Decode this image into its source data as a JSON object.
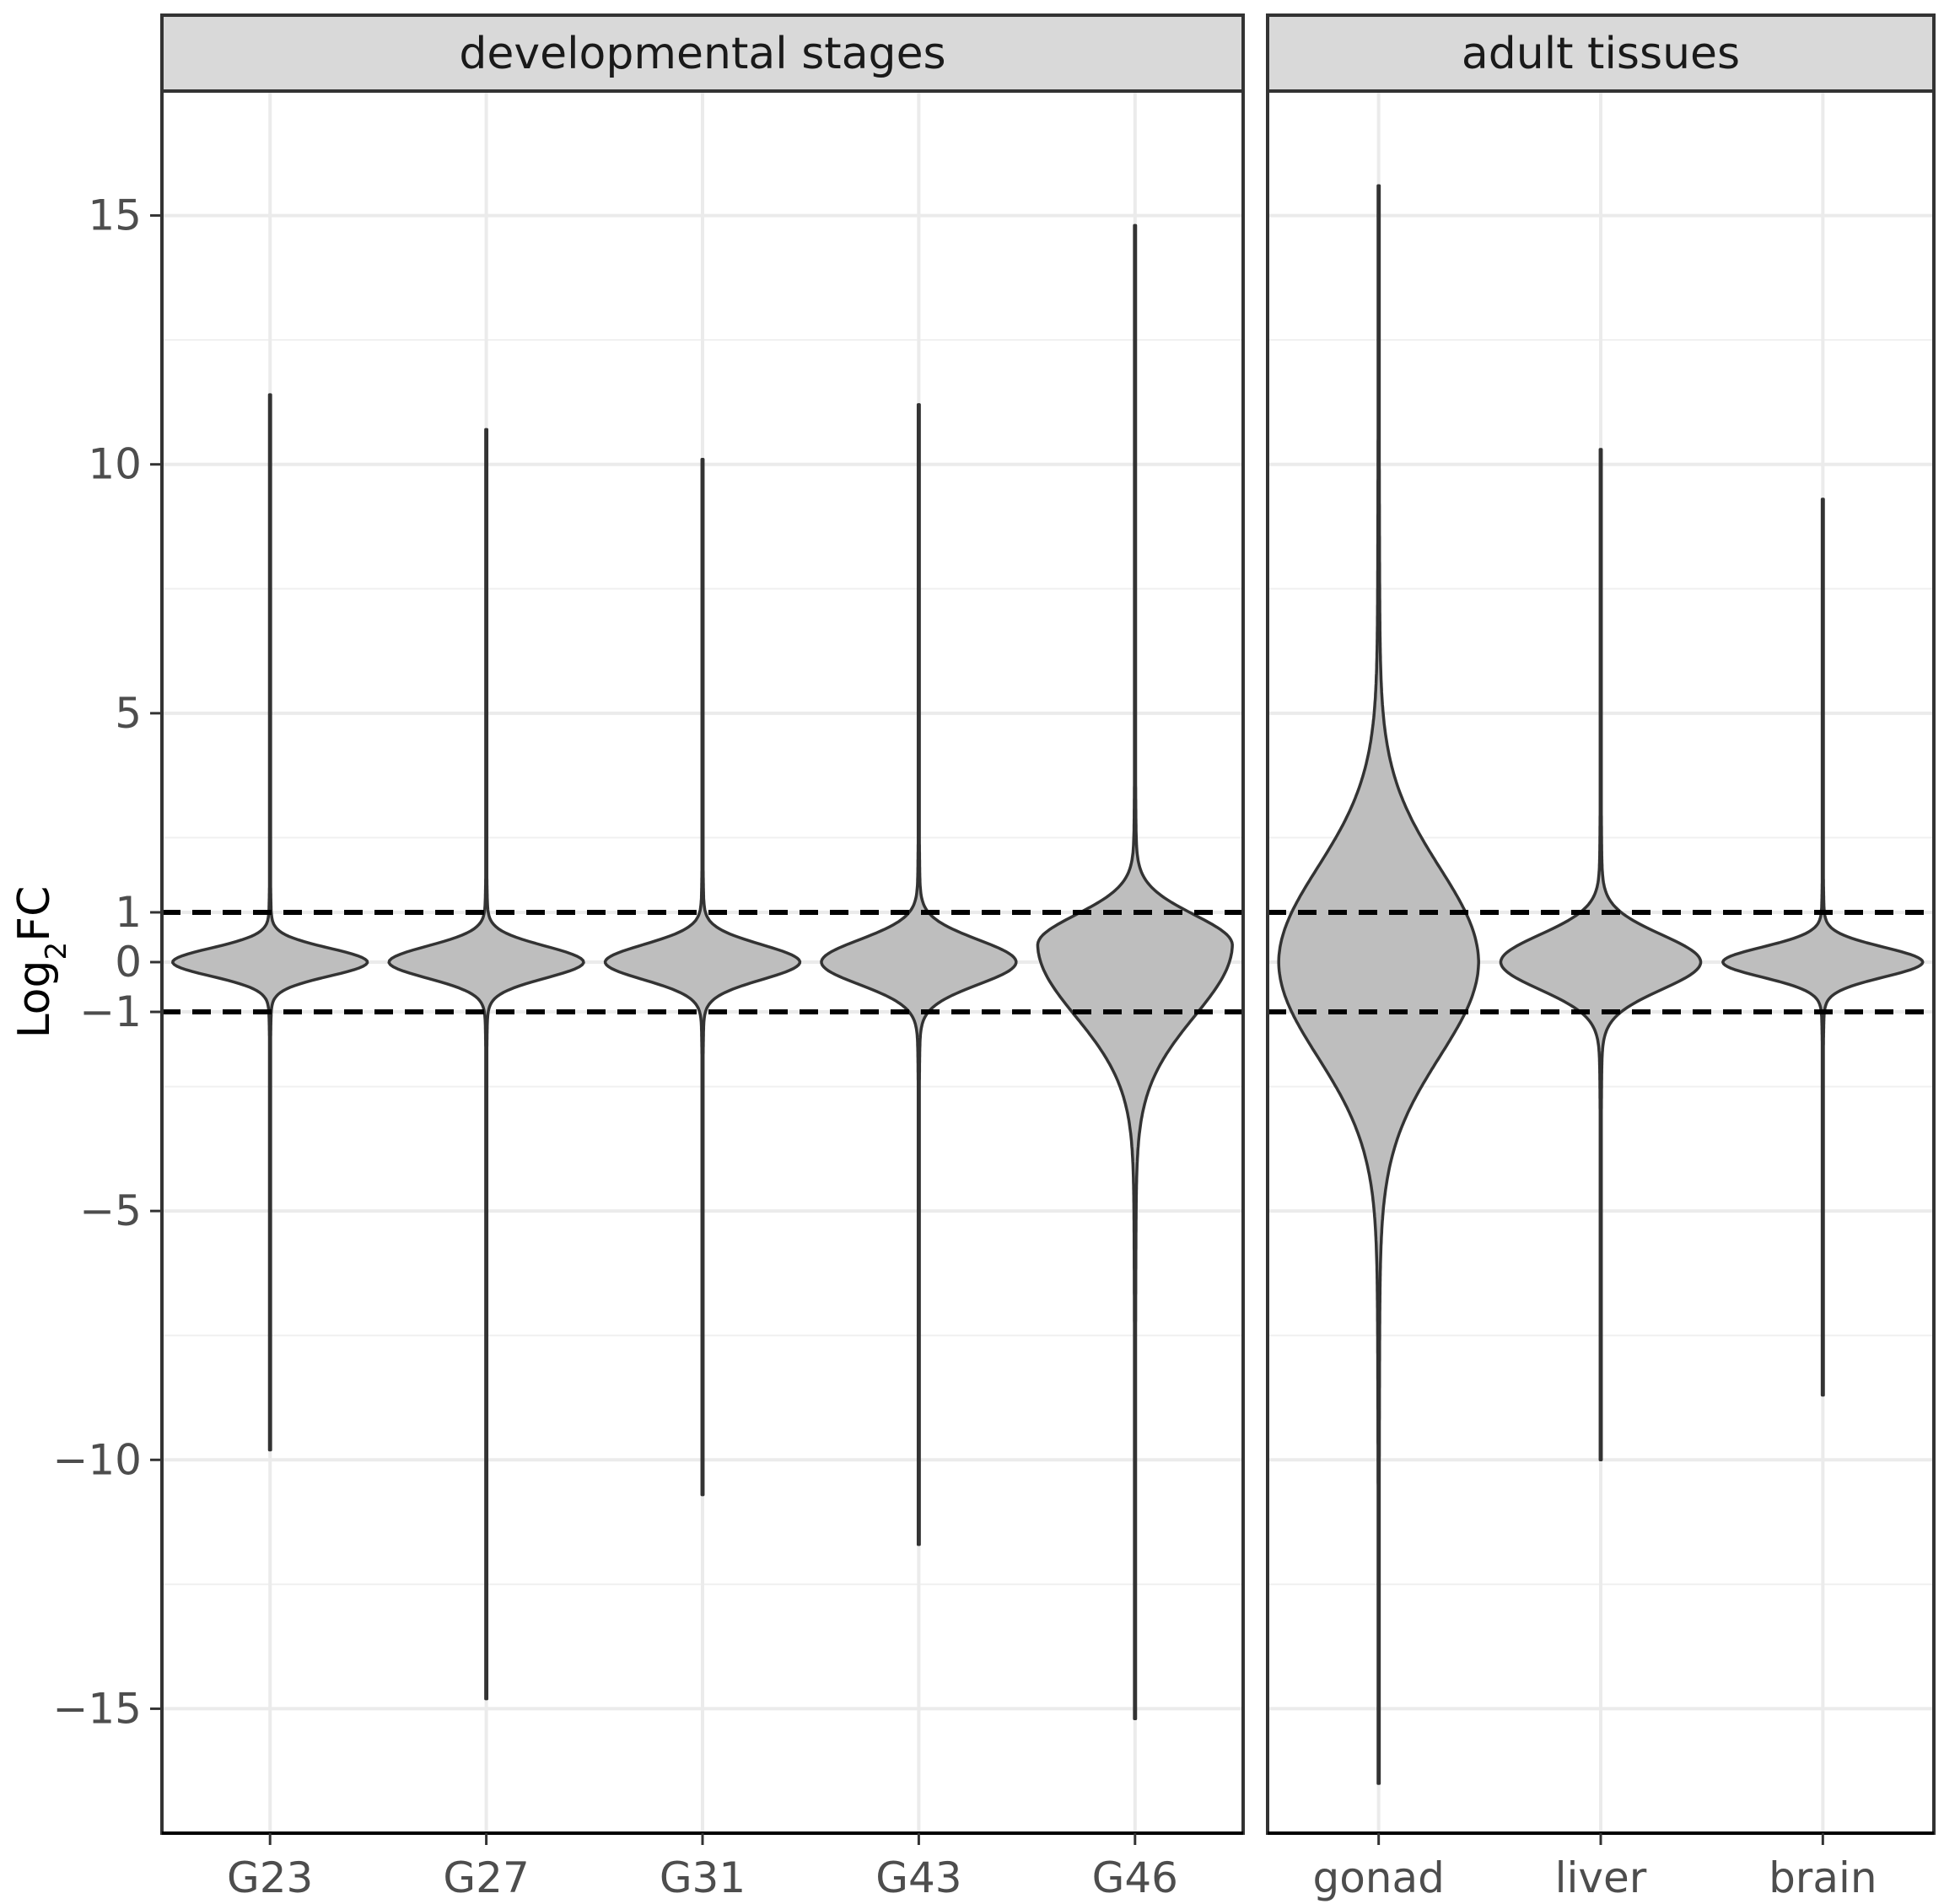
{
  "chart_data": {
    "type": "violin",
    "ylabel": {
      "main": "Log",
      "sub": "2",
      "suffix": "FC"
    },
    "ylim": [
      -17.5,
      17.5
    ],
    "y_ticks": [
      {
        "value": 15,
        "label": "15"
      },
      {
        "value": 10,
        "label": "10"
      },
      {
        "value": 5,
        "label": "5"
      },
      {
        "value": 1,
        "label": "1"
      },
      {
        "value": 0,
        "label": "0"
      },
      {
        "value": -1,
        "label": "−1"
      },
      {
        "value": -5,
        "label": "−5"
      },
      {
        "value": -10,
        "label": "−10"
      },
      {
        "value": -15,
        "label": "−15"
      }
    ],
    "reference_lines": [
      1,
      -1
    ],
    "grid": true,
    "fill_color": "#bebebe",
    "outline_color": "#333333",
    "panels": [
      {
        "title": "developmental stages",
        "categories": [
          "G23",
          "G27",
          "G31",
          "G43",
          "G46"
        ],
        "violins": [
          {
            "category": "G23",
            "min": -9.8,
            "max": 11.4,
            "center": 0.0,
            "width": 0.9,
            "spread": 0.28,
            "skew": 0.0
          },
          {
            "category": "G27",
            "min": -14.8,
            "max": 10.7,
            "center": 0.0,
            "width": 0.9,
            "spread": 0.32,
            "skew": 0.0
          },
          {
            "category": "G31",
            "min": -10.7,
            "max": 10.1,
            "center": 0.0,
            "width": 0.9,
            "spread": 0.35,
            "skew": 0.0
          },
          {
            "category": "G43",
            "min": -11.7,
            "max": 11.2,
            "center": 0.0,
            "width": 0.9,
            "spread": 0.45,
            "skew": 0.0
          },
          {
            "category": "G46",
            "min": -15.2,
            "max": 14.8,
            "center": 0.35,
            "width": 0.9,
            "spread": 0.6,
            "skew": -1.4
          }
        ]
      },
      {
        "title": "adult tissues",
        "categories": [
          "gonad",
          "liver",
          "brain"
        ],
        "violins": [
          {
            "category": "gonad",
            "min": -16.5,
            "max": 15.6,
            "center": 0.0,
            "width": 0.9,
            "spread": 1.9,
            "skew": 0.0
          },
          {
            "category": "liver",
            "min": -10.0,
            "max": 10.3,
            "center": 0.0,
            "width": 0.9,
            "spread": 0.55,
            "skew": 0.0
          },
          {
            "category": "brain",
            "min": -8.7,
            "max": 9.3,
            "center": 0.0,
            "width": 0.9,
            "spread": 0.3,
            "skew": 0.0
          }
        ]
      }
    ]
  }
}
